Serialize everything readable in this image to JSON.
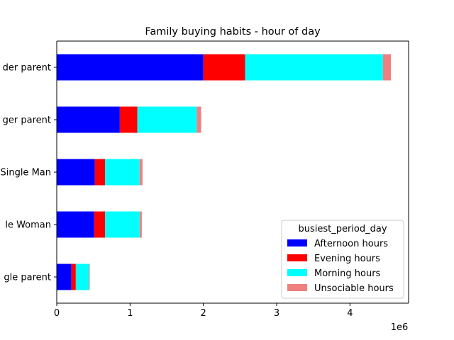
{
  "chart_data": {
    "type": "bar",
    "orientation": "horizontal",
    "stacked": true,
    "title": "Family buying habits - hour of day",
    "xlabel": "",
    "ylabel": "",
    "x_offset_label": "1e6",
    "xlim": [
      0,
      4.8
    ],
    "xticks": [
      "0",
      "1",
      "2",
      "3",
      "4"
    ],
    "categories": [
      "Single parent",
      "Single Woman",
      "Single Man",
      "Younger parent",
      "Older parent"
    ],
    "category_labels_visible": [
      "gle parent",
      "le Woman",
      "Single Man",
      "ger parent",
      "der parent"
    ],
    "series": [
      {
        "name": "Afternoon hours",
        "color": "#0000ff",
        "values": [
          0.2,
          0.51,
          0.52,
          0.86,
          2.0
        ]
      },
      {
        "name": "Evening hours",
        "color": "#ff0000",
        "values": [
          0.06,
          0.15,
          0.14,
          0.24,
          0.57
        ]
      },
      {
        "name": "Morning hours",
        "color": "#00ffff",
        "values": [
          0.18,
          0.47,
          0.47,
          0.81,
          1.88
        ]
      },
      {
        "name": "Unsociable hours",
        "color": "#f08080",
        "values": [
          0.01,
          0.03,
          0.04,
          0.06,
          0.11
        ]
      }
    ],
    "grid": false,
    "legend": {
      "title": "busiest_period_day",
      "placement": "lower-right"
    }
  }
}
